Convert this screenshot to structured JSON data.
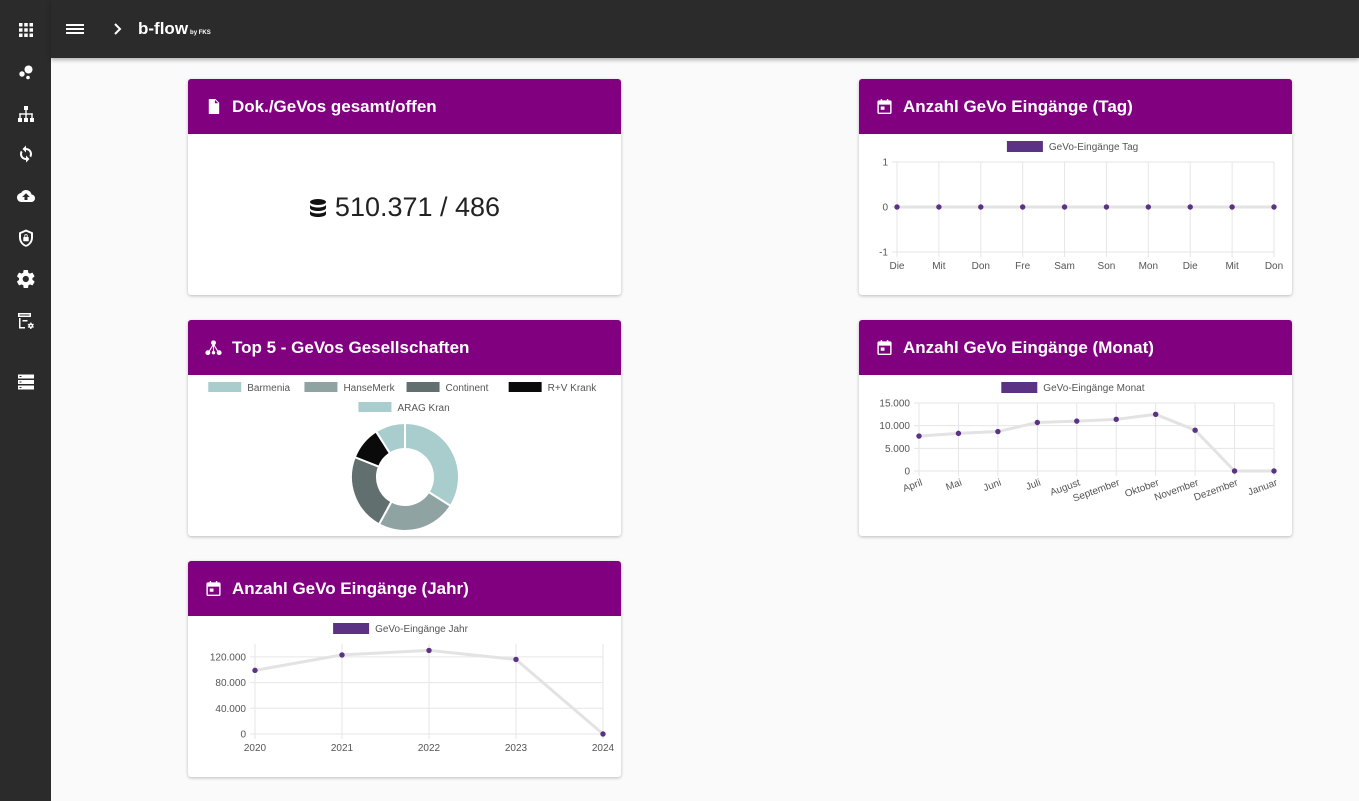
{
  "app": {
    "title": "b-flow",
    "title_suffix": "by FKS"
  },
  "sidebar": {
    "items": [
      {
        "icon": "apps-grid-icon"
      },
      {
        "icon": "bubble-chart-icon"
      },
      {
        "icon": "sitemap-icon"
      },
      {
        "icon": "sync-icon"
      },
      {
        "icon": "cloud-upload-icon"
      },
      {
        "icon": "shield-lock-icon"
      },
      {
        "icon": "gear-icon"
      },
      {
        "icon": "archive-settings-icon"
      },
      {
        "icon": "storage-list-icon"
      }
    ]
  },
  "colors": {
    "header": "#800080",
    "series": "#5c3284",
    "topbar": "#2b2b2b"
  },
  "cards": {
    "total": {
      "title": "Dok./GeVos gesamt/offen",
      "value": "510.371 / 486"
    },
    "top5": {
      "title": "Top 5 - GeVos Gesellschaften"
    },
    "year": {
      "title": "Anzahl GeVo Eingänge (Jahr)"
    },
    "day": {
      "title": "Anzahl GeVo Eingänge (Tag)"
    },
    "month": {
      "title": "Anzahl GeVo Eingänge (Monat)"
    }
  },
  "chart_data": [
    {
      "id": "day",
      "type": "line",
      "legend": "GeVo-Eingänge Tag",
      "x": [
        "Die",
        "Mit",
        "Don",
        "Fre",
        "Sam",
        "Son",
        "Mon",
        "Die",
        "Mit",
        "Don"
      ],
      "values": [
        0,
        0,
        0,
        0,
        0,
        0,
        0,
        0,
        0,
        0
      ],
      "ylim": [
        -1,
        1
      ],
      "yticks": [
        1,
        0,
        -1
      ],
      "ytick_labels": [
        "1",
        "0",
        "-1"
      ]
    },
    {
      "id": "month",
      "type": "line",
      "legend": "GeVo-Eingänge Monat",
      "x": [
        "April",
        "Mai",
        "Juni",
        "Juli",
        "August",
        "September",
        "Oktober",
        "November",
        "Dezember",
        "Januar"
      ],
      "values": [
        7700,
        8300,
        8700,
        10700,
        11000,
        11400,
        12500,
        9000,
        0,
        0
      ],
      "ylim": [
        0,
        15000
      ],
      "yticks": [
        15000,
        10000,
        5000,
        0
      ],
      "ytick_labels": [
        "15.000",
        "10.000",
        "5.000",
        "0"
      ]
    },
    {
      "id": "year",
      "type": "line",
      "legend": "GeVo-Eingänge Jahr",
      "x": [
        "2020",
        "2021",
        "2022",
        "2023",
        "2024"
      ],
      "values": [
        99000,
        123000,
        130000,
        116000,
        0
      ],
      "ylim": [
        0,
        140000
      ],
      "yticks": [
        120000,
        80000,
        40000,
        0
      ],
      "ytick_labels": [
        "120.000",
        "80.000",
        "40.000",
        "0"
      ]
    },
    {
      "id": "top5",
      "type": "pie",
      "donut": true,
      "legend": [
        "Barmenia",
        "HanseMerk",
        "Continent",
        "R+V Krank",
        "ARAG Kran"
      ],
      "colors": [
        "#a9cdcd",
        "#8fa3a3",
        "#626f6f",
        "#0a0a0a",
        "#a9cdcd"
      ],
      "values": [
        34,
        24,
        23,
        10,
        9
      ]
    }
  ]
}
